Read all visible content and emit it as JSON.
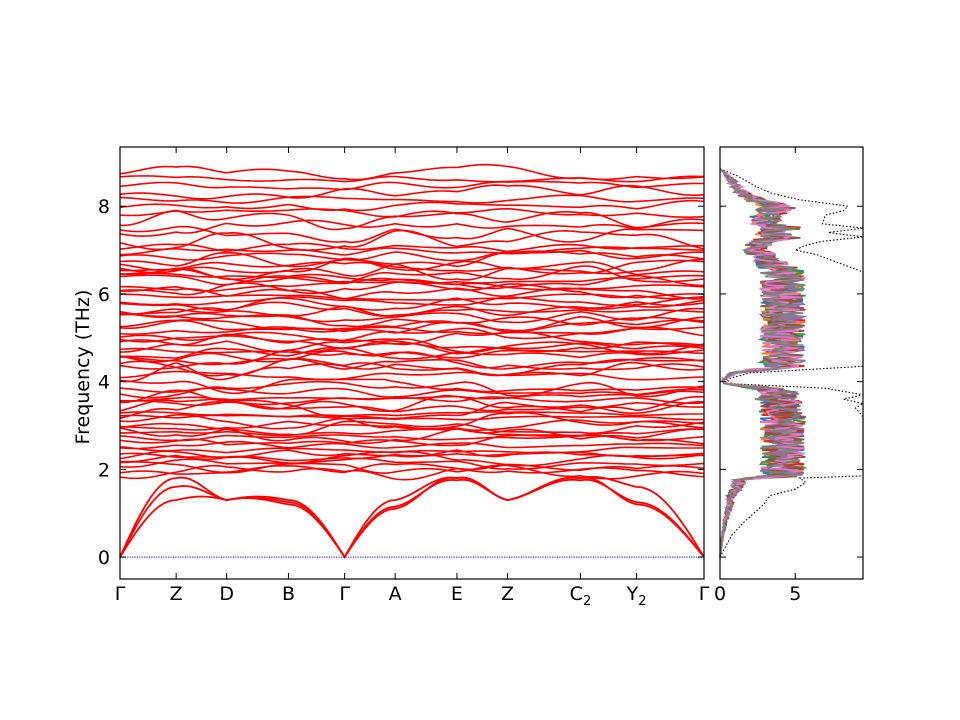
{
  "chart_data": [
    {
      "type": "line",
      "ylabel": "Frequency (THz)",
      "ylim": [
        -0.5,
        9.35
      ],
      "y_ticks": [
        "0",
        "2",
        "4",
        "6",
        "8"
      ],
      "y_tick_values": [
        0,
        2,
        4,
        6,
        8
      ],
      "x_ticks": [
        {
          "label": "Γ",
          "sub": ""
        },
        {
          "label": "Z",
          "sub": ""
        },
        {
          "label": "D",
          "sub": ""
        },
        {
          "label": "B",
          "sub": ""
        },
        {
          "label": "Γ",
          "sub": ""
        },
        {
          "label": "A",
          "sub": ""
        },
        {
          "label": "E",
          "sub": ""
        },
        {
          "label": "Z",
          "sub": ""
        },
        {
          "label": "C",
          "sub": "2"
        },
        {
          "label": "Y",
          "sub": "2"
        },
        {
          "label": "Γ",
          "sub": ""
        }
      ],
      "path_positions": [
        0,
        1.0,
        1.9,
        3.0,
        4.0,
        4.9,
        6.0,
        6.9,
        8.2,
        9.2,
        10.4
      ],
      "band_color": "#ff0000",
      "zero_line_color": "#0000ff",
      "acoustic_branches": [
        {
          "values": [
            0,
            1.8,
            1.3,
            1.3,
            0,
            1.3,
            1.8,
            1.3,
            1.8,
            1.6,
            0
          ]
        },
        {
          "values": [
            0,
            1.6,
            1.3,
            1.2,
            0,
            1.1,
            1.8,
            1.3,
            1.8,
            1.2,
            0
          ]
        },
        {
          "values": [
            0,
            1.3,
            1.3,
            1.25,
            0,
            1.15,
            1.75,
            1.3,
            1.75,
            1.25,
            0
          ]
        }
      ],
      "optical_band_groups": [
        {
          "range": [
            1.85,
            3.95
          ],
          "count": 26
        },
        {
          "range": [
            4.1,
            7.0
          ],
          "count": 34
        },
        {
          "range": [
            7.0,
            8.85
          ],
          "count": 12
        }
      ]
    },
    {
      "type": "line",
      "xlim": [
        0,
        9.5
      ],
      "x_ticks": [
        "0",
        "5"
      ],
      "x_tick_values": [
        0,
        5
      ],
      "total_dos_style": "dotted black",
      "total_dos": [
        [
          0.0,
          0
        ],
        [
          0.2,
          0.3
        ],
        [
          0.5,
          0.8
        ],
        [
          0.8,
          1.6
        ],
        [
          1.2,
          2.9
        ],
        [
          1.4,
          3.3
        ],
        [
          1.55,
          5.0
        ],
        [
          1.7,
          5.7
        ],
        [
          1.8,
          5.3
        ],
        [
          1.85,
          9.5
        ],
        [
          2.0,
          9.5
        ],
        [
          2.6,
          9.5
        ],
        [
          2.8,
          9.5
        ],
        [
          3.2,
          9.5
        ],
        [
          3.4,
          9.0
        ],
        [
          3.5,
          9.5
        ],
        [
          3.6,
          8.2
        ],
        [
          3.7,
          9.5
        ],
        [
          3.85,
          7.0
        ],
        [
          3.95,
          0.8
        ],
        [
          4.05,
          0.4
        ],
        [
          4.2,
          2.0
        ],
        [
          4.35,
          9.5
        ],
        [
          5.0,
          9.5
        ],
        [
          5.3,
          9.5
        ],
        [
          5.4,
          9.5
        ],
        [
          5.6,
          9.5
        ],
        [
          6.0,
          9.5
        ],
        [
          6.5,
          9.5
        ],
        [
          6.9,
          6.4
        ],
        [
          7.0,
          5.0
        ],
        [
          7.1,
          5.6
        ],
        [
          7.2,
          6.8
        ],
        [
          7.3,
          9.5
        ],
        [
          7.4,
          7.2
        ],
        [
          7.5,
          9.5
        ],
        [
          7.6,
          6.8
        ],
        [
          7.8,
          7.0
        ],
        [
          7.9,
          8.2
        ],
        [
          8.0,
          8.5
        ],
        [
          8.15,
          5.2
        ],
        [
          8.3,
          3.4
        ],
        [
          8.45,
          2.4
        ],
        [
          8.7,
          1.1
        ],
        [
          8.85,
          0
        ]
      ],
      "projected_dos": [
        {
          "color": "#1f77b4"
        },
        {
          "color": "#ff7f0e"
        },
        {
          "color": "#2ca02c"
        },
        {
          "color": "#d62728"
        },
        {
          "color": "#9467bd"
        },
        {
          "color": "#8c564b"
        },
        {
          "color": "#e377c2"
        },
        {
          "color": "#7f7f7f"
        }
      ]
    }
  ]
}
